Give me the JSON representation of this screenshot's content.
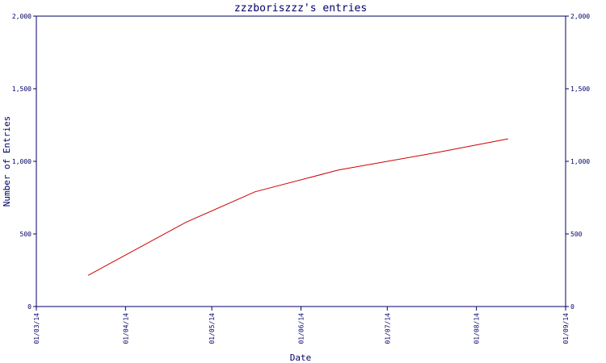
{
  "chart_data": {
    "type": "line",
    "title": "zzzboriszzz's entries",
    "xlabel": "Date",
    "ylabel": "Number of Entries",
    "x_ticks": [
      "01/03/14",
      "01/04/14",
      "01/05/14",
      "01/06/14",
      "01/07/14",
      "01/08/14",
      "01/09/14"
    ],
    "y_ticks": [
      "0",
      "500",
      "1,000",
      "1,500",
      "2,000"
    ],
    "xlim": [
      "2014-03-01",
      "2014-09-01"
    ],
    "ylim": [
      0,
      2000
    ],
    "grid": false,
    "colors": {
      "axis": "#000066",
      "line": "#cc0000"
    },
    "series": [
      {
        "x": [
          "2014-03-19",
          "2014-04-22",
          "2014-05-16",
          "2014-06-14",
          "2014-07-18",
          "2014-08-12"
        ],
        "values": [
          215,
          580,
          790,
          940,
          1060,
          1155
        ]
      }
    ]
  }
}
